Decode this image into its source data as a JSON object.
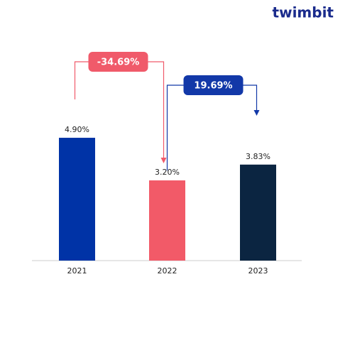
{
  "logo": "twimbit",
  "chart_data": {
    "type": "bar",
    "categories": [
      "2021",
      "2022",
      "2023"
    ],
    "values": [
      4.9,
      3.2,
      3.83
    ],
    "value_labels": [
      "4.90%",
      "3.20%",
      "3.83%"
    ],
    "colors": [
      "#0033a6",
      "#f25a68",
      "#0b2541"
    ],
    "annotations": [
      {
        "label": "-34.69%",
        "from": "2021",
        "to": "2022",
        "color": "#f05a6a"
      },
      {
        "label": "19.69%",
        "from": "2022",
        "to": "2023",
        "color": "#1238a8"
      }
    ]
  }
}
